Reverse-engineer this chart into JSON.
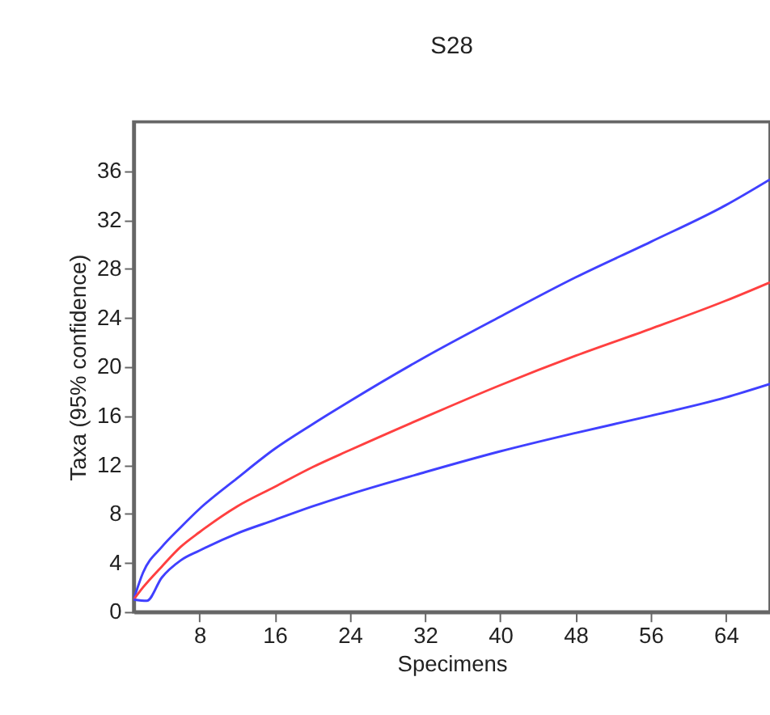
{
  "chart_data": {
    "type": "line",
    "title": "S28",
    "xlabel": "Specimens",
    "ylabel": "Taxa (95% confidence)",
    "xlim": [
      1,
      68.7
    ],
    "xticks": [
      8,
      16,
      24,
      32,
      40,
      48,
      56,
      64
    ],
    "ylim": [
      0,
      40
    ],
    "yticks": [
      0,
      4,
      8,
      12,
      16,
      20,
      24,
      28,
      32,
      36
    ],
    "grid": false,
    "legend": false,
    "marker": "none",
    "line_style": "solid",
    "series": [
      {
        "color": "#4040ff",
        "x": [
          1,
          2,
          4,
          6,
          8,
          12,
          16,
          20,
          24,
          32,
          40,
          48,
          56,
          64,
          68.7
        ],
        "values": [
          1,
          3.2,
          5.3,
          6.9,
          8.4,
          10.9,
          13.3,
          15.3,
          17.2,
          20.8,
          24.1,
          27.3,
          30.2,
          33.2,
          35.3
        ]
      },
      {
        "color": "#ff4040",
        "x": [
          1,
          2,
          4,
          6,
          8,
          12,
          16,
          20,
          24,
          32,
          40,
          48,
          56,
          64,
          68.7
        ],
        "values": [
          1,
          2.0,
          3.7,
          5.3,
          6.5,
          8.6,
          10.2,
          11.8,
          13.2,
          15.9,
          18.5,
          20.9,
          23.1,
          25.4,
          26.9
        ]
      },
      {
        "color": "#4040ff",
        "x": [
          1,
          2.4,
          4,
          6,
          8,
          12,
          16,
          20,
          24,
          32,
          40,
          48,
          56,
          64,
          68.7
        ],
        "values": [
          1,
          0.9,
          2.8,
          4.2,
          5.0,
          6.4,
          7.5,
          8.6,
          9.6,
          11.4,
          13.1,
          14.6,
          16.0,
          17.5,
          18.6
        ]
      }
    ]
  }
}
